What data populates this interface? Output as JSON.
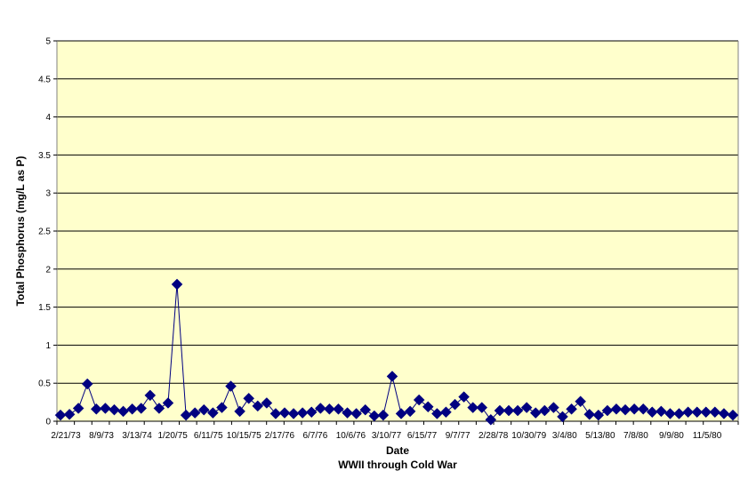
{
  "chart_data": {
    "type": "line",
    "markers": "diamond",
    "title": "",
    "xlabel": "Date",
    "subtitle": "WWII through Cold War",
    "ylabel": "Total Phosphorus (mg/L as P)",
    "ylim": [
      0,
      5
    ],
    "yticks": [
      "0",
      "0.5",
      "1",
      "1.5",
      "2",
      "2.5",
      "3",
      "3.5",
      "4",
      "4.5",
      "5"
    ],
    "xtick_labels": [
      "2/21/73",
      "8/9/73",
      "3/13/74",
      "1/20/75",
      "6/11/75",
      "10/15/75",
      "2/17/76",
      "6/7/76",
      "10/6/76",
      "3/10/77",
      "6/15/77",
      "9/7/77",
      "2/28/78",
      "10/30/79",
      "3/4/80",
      "5/13/80",
      "7/8/80",
      "9/9/80",
      "11/5/80"
    ],
    "grid": true,
    "legend": "none",
    "colors": {
      "plot_background": "#FFFFCC",
      "series": "#000080",
      "gridline": "#000000"
    },
    "series": [
      {
        "values": [
          0.08,
          0.09,
          0.17,
          0.49,
          0.16,
          0.17,
          0.15,
          0.13,
          0.16,
          0.17,
          0.34,
          0.17,
          0.24,
          1.8,
          0.08,
          0.11,
          0.15,
          0.11,
          0.18,
          0.46,
          0.13,
          0.3,
          0.2,
          0.24,
          0.1,
          0.11,
          0.1,
          0.11,
          0.12,
          0.17,
          0.16,
          0.16,
          0.11,
          0.1,
          0.15,
          0.07,
          0.08,
          0.59,
          0.1,
          0.13,
          0.28,
          0.19,
          0.1,
          0.12,
          0.22,
          0.32,
          0.18,
          0.18,
          0.02,
          0.14,
          0.14,
          0.14,
          0.18,
          0.11,
          0.14,
          0.18,
          0.06,
          0.16,
          0.26,
          0.09,
          0.08,
          0.14,
          0.16,
          0.15,
          0.16,
          0.16,
          0.12,
          0.13,
          0.1,
          0.1,
          0.12,
          0.12,
          0.12,
          0.12,
          0.1,
          0.08
        ]
      }
    ]
  }
}
